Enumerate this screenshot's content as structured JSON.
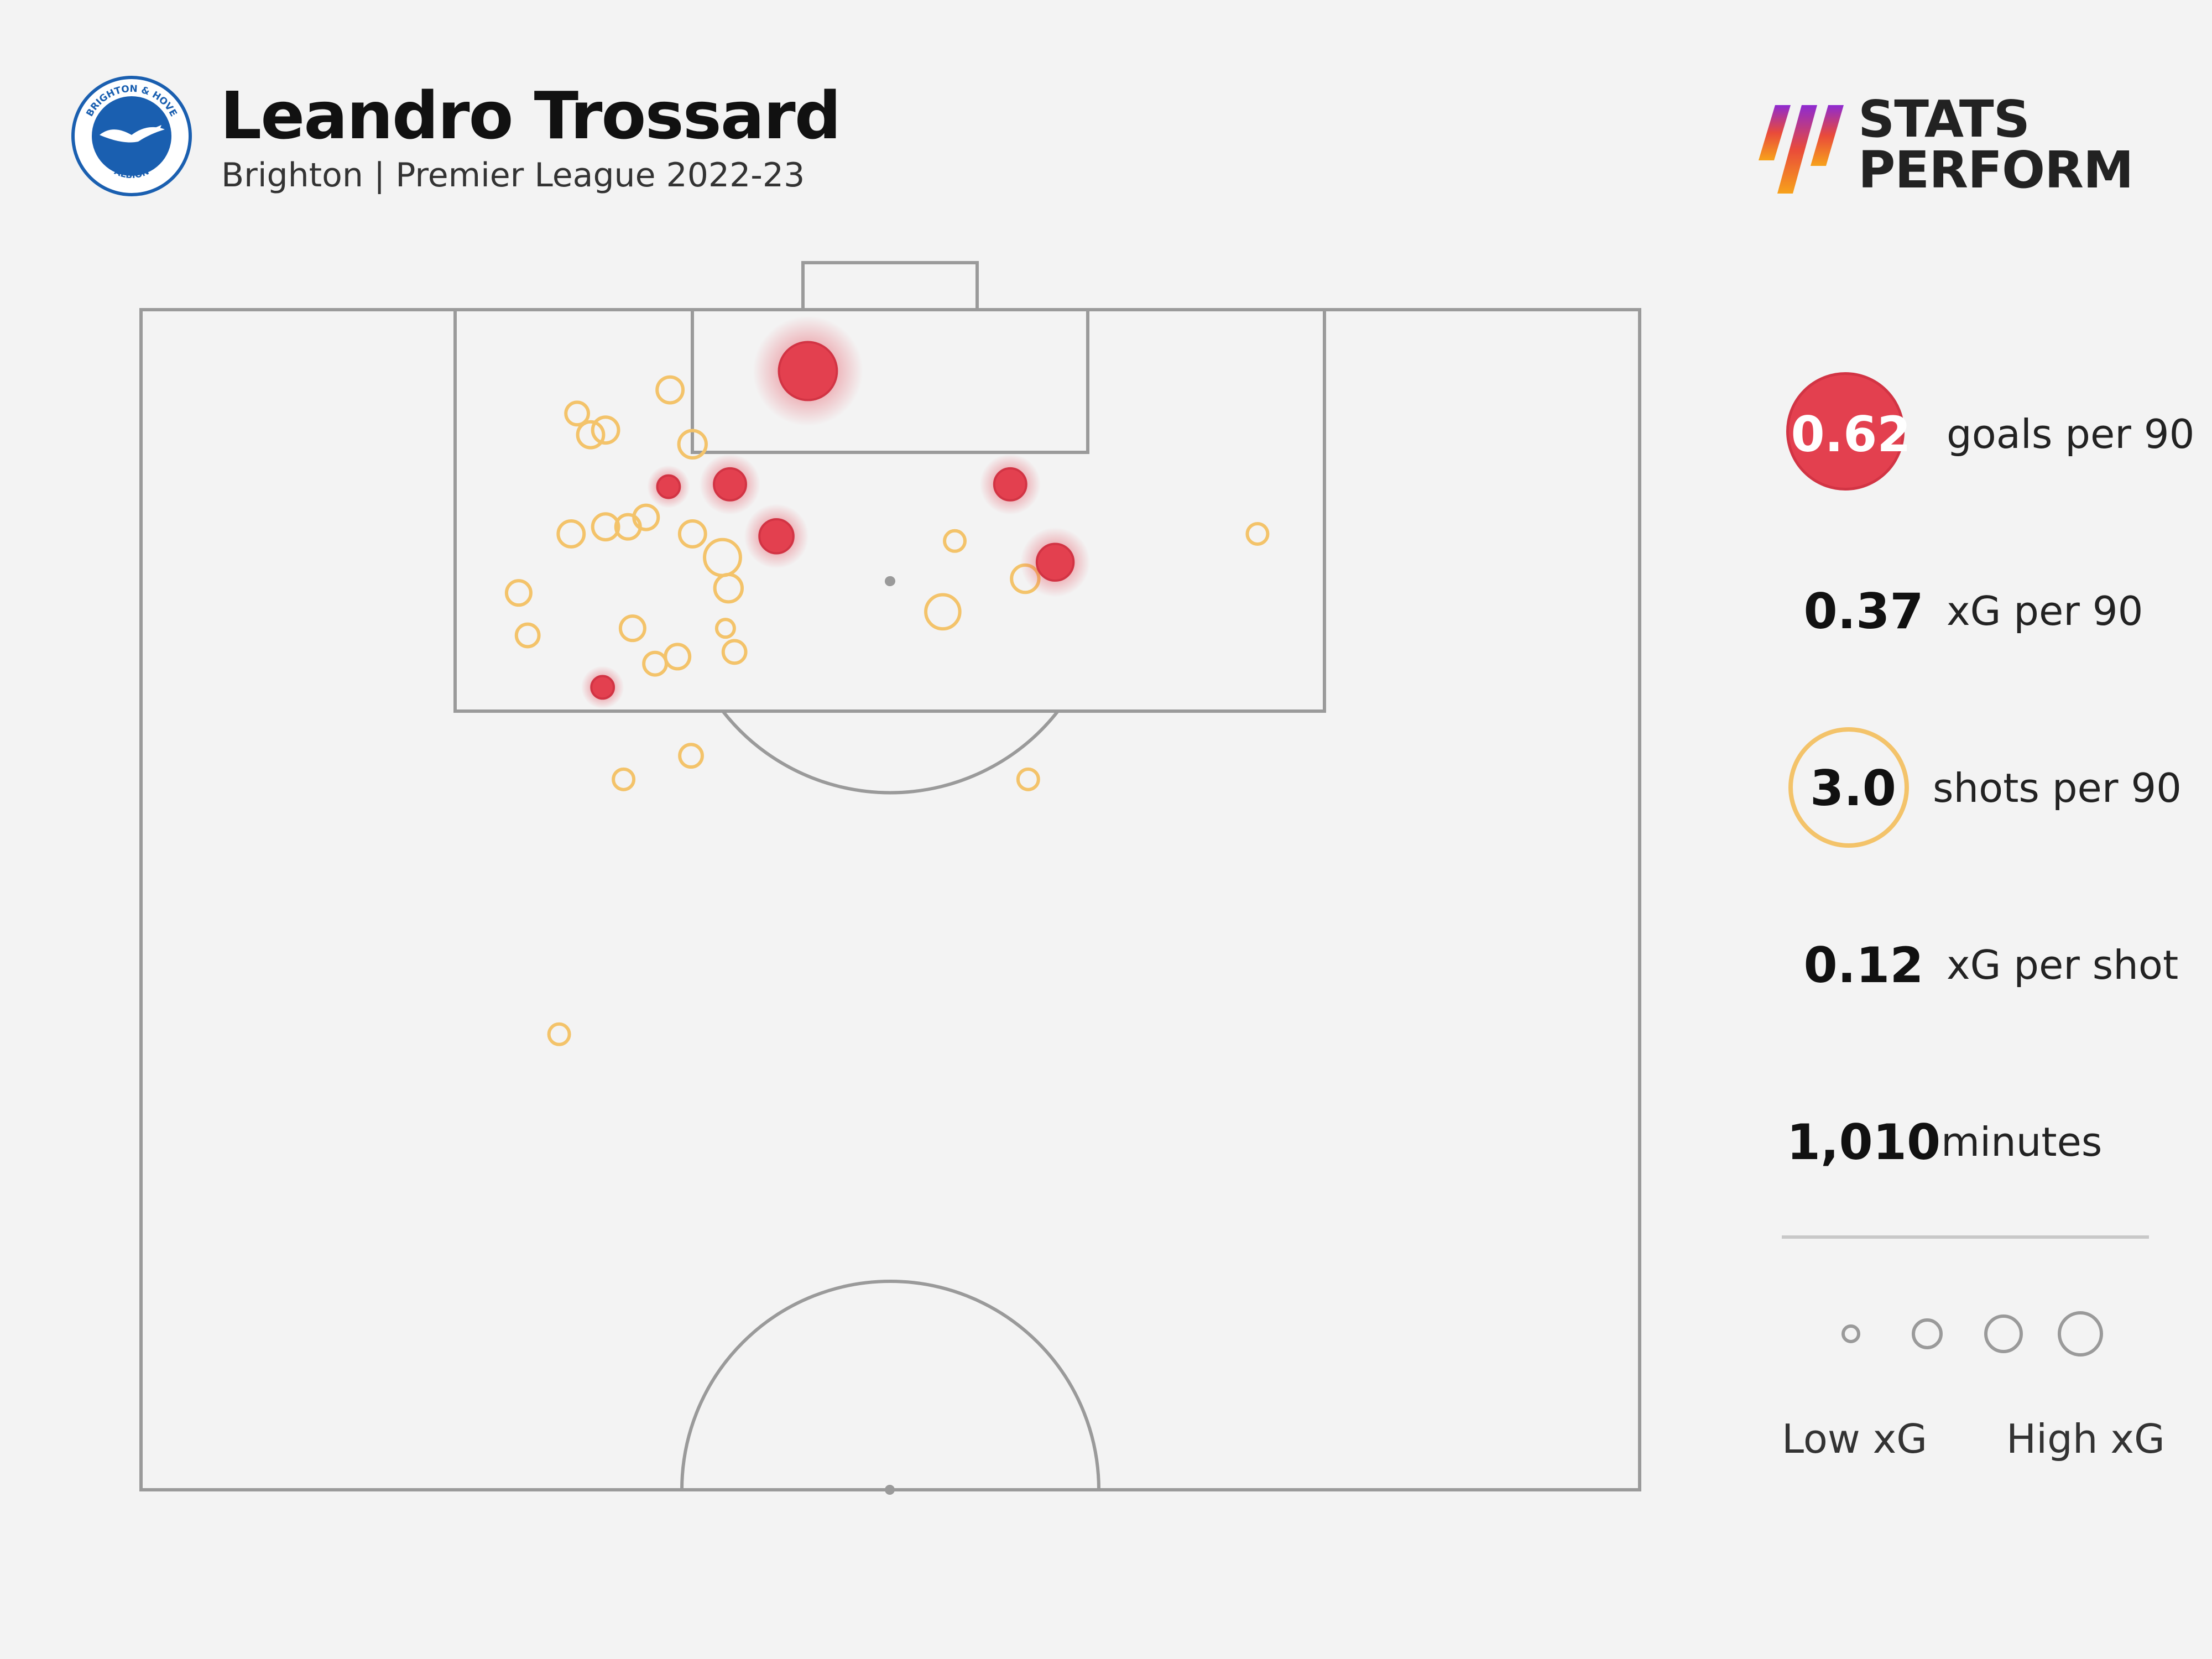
{
  "header": {
    "player_name": "Leandro Trossard",
    "subtitle": "Brighton | Premier League 2022-23",
    "badge_text_top": "BRIGHTON & HOVE",
    "badge_text_bottom": "ALBION",
    "brand_line1": "STATS",
    "brand_line2": "PERFORM"
  },
  "stats": {
    "goals_per_90": {
      "value": "0.62",
      "label": "goals per 90"
    },
    "xg_per_90": {
      "value": "0.37",
      "label": "xG per 90"
    },
    "shots_per_90": {
      "value": "3.0",
      "label": "shots per 90"
    },
    "xg_per_shot": {
      "value": "0.12",
      "label": "xG per shot"
    },
    "minutes": {
      "value": "1,010",
      "label": "minutes"
    }
  },
  "legend": {
    "low_label": "Low xG",
    "high_label": "High xG"
  },
  "colors": {
    "goal": "#e3404f",
    "shot": "#f3c36a",
    "pitch_line": "#9a9a9a",
    "background": "#f3f3f3"
  },
  "chart_data": {
    "type": "scatter",
    "x_desc": "horizontal position on pitch (0 = left touchline, 100 = right touchline)",
    "y_desc": "distance from opponent goal line (0 = goal line, 50 = halfway line)",
    "xlim": [
      0,
      100
    ],
    "ylim": [
      0,
      50
    ],
    "size_encoding": "xG",
    "series": [
      {
        "outcome": "goal",
        "points": [
          {
            "x": 44.5,
            "y": 2.6,
            "xg": 0.5
          },
          {
            "x": 39.3,
            "y": 7.4,
            "xg": 0.1
          },
          {
            "x": 35.2,
            "y": 7.5,
            "xg": 0.03
          },
          {
            "x": 58.0,
            "y": 7.4,
            "xg": 0.1
          },
          {
            "x": 42.4,
            "y": 9.6,
            "xg": 0.12
          },
          {
            "x": 61.0,
            "y": 10.7,
            "xg": 0.15
          },
          {
            "x": 30.8,
            "y": 16.0,
            "xg": 0.03
          }
        ]
      },
      {
        "outcome": "shot",
        "points": [
          {
            "x": 35.3,
            "y": 3.4,
            "xg": 0.05
          },
          {
            "x": 29.1,
            "y": 4.4,
            "xg": 0.03
          },
          {
            "x": 30.0,
            "y": 5.3,
            "xg": 0.05
          },
          {
            "x": 31.0,
            "y": 5.1,
            "xg": 0.05
          },
          {
            "x": 36.8,
            "y": 5.7,
            "xg": 0.06
          },
          {
            "x": 28.7,
            "y": 9.5,
            "xg": 0.05
          },
          {
            "x": 31.0,
            "y": 9.2,
            "xg": 0.05
          },
          {
            "x": 32.5,
            "y": 9.2,
            "xg": 0.04
          },
          {
            "x": 33.7,
            "y": 8.8,
            "xg": 0.04
          },
          {
            "x": 36.8,
            "y": 9.5,
            "xg": 0.05
          },
          {
            "x": 38.8,
            "y": 10.5,
            "xg": 0.14
          },
          {
            "x": 54.3,
            "y": 9.8,
            "xg": 0.02
          },
          {
            "x": 74.5,
            "y": 9.5,
            "xg": 0.02
          },
          {
            "x": 25.2,
            "y": 12.0,
            "xg": 0.04
          },
          {
            "x": 39.2,
            "y": 11.8,
            "xg": 0.06
          },
          {
            "x": 59.0,
            "y": 11.4,
            "xg": 0.06
          },
          {
            "x": 25.8,
            "y": 13.8,
            "xg": 0.03
          },
          {
            "x": 32.8,
            "y": 13.5,
            "xg": 0.04
          },
          {
            "x": 39.0,
            "y": 13.5,
            "xg": 0.01
          },
          {
            "x": 53.5,
            "y": 12.8,
            "xg": 0.12
          },
          {
            "x": 34.3,
            "y": 15.0,
            "xg": 0.03
          },
          {
            "x": 35.8,
            "y": 14.7,
            "xg": 0.04
          },
          {
            "x": 39.6,
            "y": 14.5,
            "xg": 0.03
          },
          {
            "x": 36.7,
            "y": 18.9,
            "xg": 0.03
          },
          {
            "x": 32.2,
            "y": 19.9,
            "xg": 0.02
          },
          {
            "x": 59.2,
            "y": 19.9,
            "xg": 0.02
          },
          {
            "x": 27.9,
            "y": 30.7,
            "xg": 0.02
          }
        ]
      },
      {
        "outcome": "other",
        "points": [
          {
            "x": 50.0,
            "y": 11.5,
            "xg": 0.01
          }
        ]
      }
    ]
  }
}
